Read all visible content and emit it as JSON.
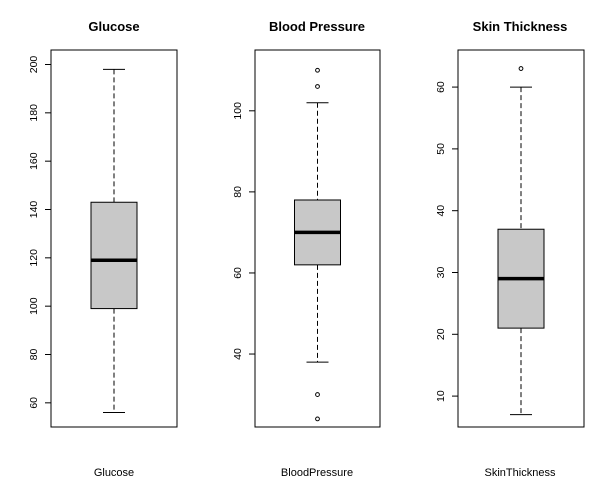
{
  "chart_data": [
    {
      "type": "boxplot",
      "title": "Glucose",
      "xlabel": "Glucose",
      "ylabel": "",
      "ylim": [
        50,
        206
      ],
      "yticks": [
        60,
        80,
        100,
        120,
        140,
        160,
        180,
        200
      ],
      "box": {
        "whisker_low": 56,
        "q1": 99,
        "median": 119,
        "q3": 143,
        "whisker_high": 198
      },
      "outliers": [],
      "box_color": "#c8c8c8"
    },
    {
      "type": "boxplot",
      "title": "Blood Pressure",
      "xlabel": "BloodPressure",
      "ylabel": "",
      "ylim": [
        22,
        115
      ],
      "yticks": [
        40,
        60,
        80,
        100
      ],
      "box": {
        "whisker_low": 38,
        "q1": 62,
        "median": 70,
        "q3": 78,
        "whisker_high": 102
      },
      "outliers": [
        24,
        30,
        106,
        110
      ],
      "box_color": "#c8c8c8"
    },
    {
      "type": "boxplot",
      "title": "Skin Thickness",
      "xlabel": "SkinThickness",
      "ylabel": "",
      "ylim": [
        5,
        66
      ],
      "yticks": [
        10,
        20,
        30,
        40,
        50,
        60
      ],
      "box": {
        "whisker_low": 7,
        "q1": 21,
        "median": 29,
        "q3": 37,
        "whisker_high": 60
      },
      "outliers": [
        63
      ],
      "box_color": "#c8c8c8"
    }
  ]
}
